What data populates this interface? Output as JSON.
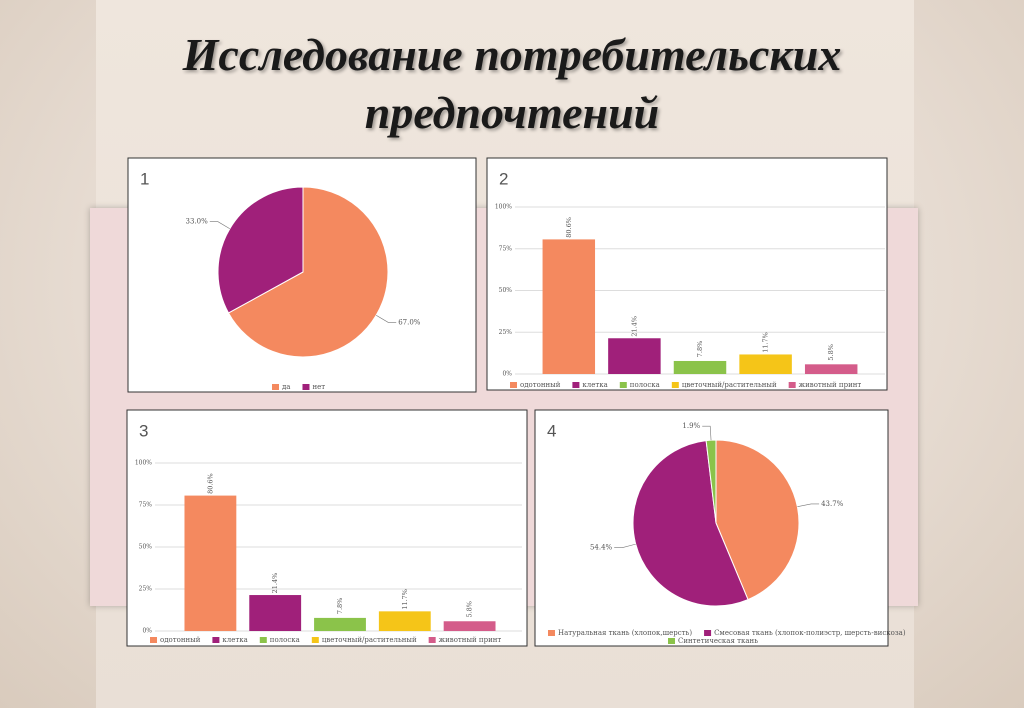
{
  "title": "Исследование потребительских предпочтений",
  "chart_data": [
    {
      "type": "pie",
      "panel_label": "1",
      "categories": [
        "да",
        "нет"
      ],
      "values": [
        67.0,
        33.0
      ],
      "value_labels": [
        "67.0%",
        "33.0%"
      ],
      "colors": [
        "#f4895f",
        "#a0207a"
      ]
    },
    {
      "type": "bar",
      "panel_label": "2",
      "categories": [
        "одотонный",
        "клетка",
        "полоска",
        "цветочный/растительный",
        "животный принт"
      ],
      "values": [
        80.6,
        21.4,
        7.8,
        11.7,
        5.8
      ],
      "value_labels": [
        "80.6%",
        "21.4%",
        "7.8%",
        "11.7%",
        "5.8%"
      ],
      "colors": [
        "#f4895f",
        "#a0207a",
        "#8bc34a",
        "#f5c518",
        "#d45c8a"
      ],
      "ylim": [
        0,
        100
      ],
      "yticks": [
        {
          "value": 0,
          "label": "0%"
        },
        {
          "value": 25,
          "label": "25%"
        },
        {
          "value": 50,
          "label": "50%"
        },
        {
          "value": 75,
          "label": "75%"
        },
        {
          "value": 100,
          "label": "100%"
        }
      ],
      "grid": true
    },
    {
      "type": "bar",
      "panel_label": "3",
      "categories": [
        "одотонный",
        "клетка",
        "полоска",
        "цветочный/растительный",
        "животный принт"
      ],
      "values": [
        80.6,
        21.4,
        7.8,
        11.7,
        5.8
      ],
      "value_labels": [
        "80.6%",
        "21.4%",
        "7.8%",
        "11.7%",
        "5.8%"
      ],
      "colors": [
        "#f4895f",
        "#a0207a",
        "#8bc34a",
        "#f5c518",
        "#d45c8a"
      ],
      "ylim": [
        0,
        100
      ],
      "yticks": [
        {
          "value": 0,
          "label": "0%"
        },
        {
          "value": 25,
          "label": "25%"
        },
        {
          "value": 50,
          "label": "50%"
        },
        {
          "value": 75,
          "label": "75%"
        },
        {
          "value": 100,
          "label": "100%"
        }
      ],
      "grid": true
    },
    {
      "type": "pie",
      "panel_label": "4",
      "categories": [
        "Натуральная ткань (хлопок,шерсть)",
        "Смесовая ткань (хлопок-полиэстр, шерсть-вискоза)",
        "Синтетическая ткань"
      ],
      "values": [
        43.7,
        54.4,
        1.9
      ],
      "value_labels": [
        "43.7%",
        "54.4%",
        "1.9%"
      ],
      "colors": [
        "#f4895f",
        "#a0207a",
        "#8bc34a"
      ]
    }
  ]
}
